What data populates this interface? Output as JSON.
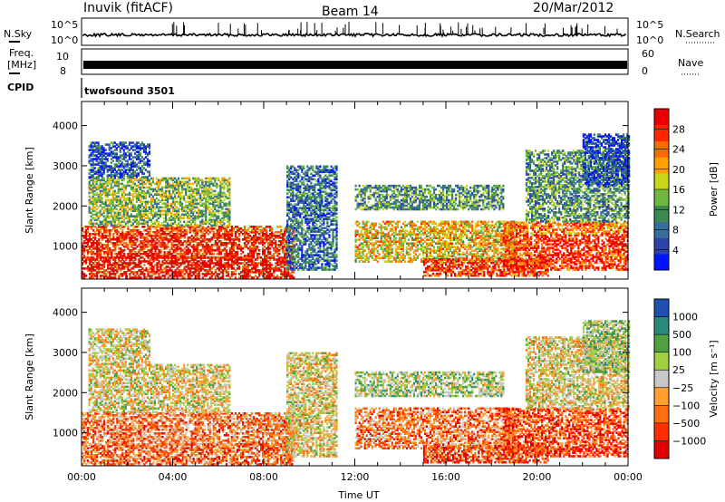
{
  "header": {
    "station": "Inuvik (fitACF)",
    "beam": "Beam 14",
    "date": "20/Mar/2012"
  },
  "noise_panel": {
    "left_label": "N.Sky",
    "right_label": "N.Search",
    "left_ticks": [
      "10^5",
      "10^0"
    ],
    "right_ticks": [
      "10^5",
      "10^0"
    ]
  },
  "freq_panel": {
    "left_label_line1": "Freq.",
    "left_label_line2": "[MHz]",
    "right_label": "Nave",
    "left_ticks": [
      "10",
      "8"
    ],
    "right_ticks": [
      "60",
      "0"
    ]
  },
  "cpid": {
    "label": "CPID",
    "value": "twofsound 3501"
  },
  "colors": {
    "power": [
      "#0014ff",
      "#2c44a8",
      "#3a6e9a",
      "#3b8a50",
      "#70b840",
      "#c8d818",
      "#ffa000",
      "#ff6a00",
      "#ff2600",
      "#e80000"
    ],
    "velocity": [
      "#e00000",
      "#ff3000",
      "#ff6e10",
      "#ffa030",
      "#c8c8c8",
      "#a0d040",
      "#50a040",
      "#2a8a7a",
      "#2050b0"
    ]
  },
  "chart_data": [
    {
      "type": "heatmap",
      "ylabel": "Slant Range [km]",
      "y_ticks": [
        1000,
        2000,
        3000,
        4000
      ],
      "ylim": [
        180,
        4600
      ],
      "xlim_hours": [
        0,
        24
      ],
      "colorbar": {
        "label": "Power [dB]",
        "ticks": [
          "4",
          "8",
          "12",
          "16",
          "20",
          "24",
          "28"
        ],
        "range": [
          0,
          30
        ]
      }
    },
    {
      "type": "heatmap",
      "ylabel": "Slant Range [km]",
      "y_ticks": [
        1000,
        2000,
        3000,
        4000
      ],
      "ylim": [
        180,
        4600
      ],
      "xlim_hours": [
        0,
        24
      ],
      "xlabel": "Time UT",
      "x_ticks": [
        "00:00",
        "04:00",
        "08:00",
        "12:00",
        "16:00",
        "20:00",
        "00:00"
      ],
      "colorbar": {
        "label": "Velocity [m s⁻¹]",
        "ticks": [
          "1000",
          "500",
          "100",
          "25",
          "−25",
          "−100",
          "−500",
          "−1000"
        ]
      }
    }
  ]
}
